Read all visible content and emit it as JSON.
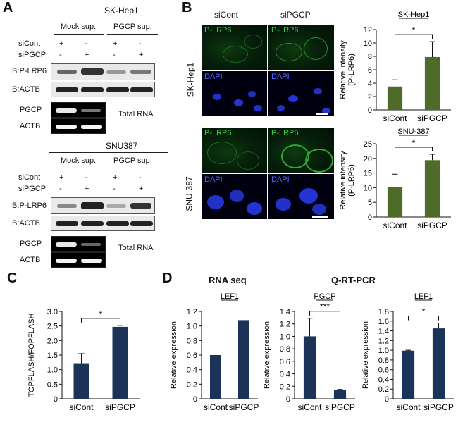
{
  "panel_a": {
    "label": "A",
    "top": {
      "cell_line": "SK-Hep1",
      "group1": "Mock sup.",
      "group2": "PGCP sup.",
      "row1_label": "siCont",
      "row2_label": "siPGCP",
      "row1_signs": [
        "+",
        "-",
        "+",
        "-"
      ],
      "row2_signs": [
        "-",
        "+",
        "-",
        "+"
      ],
      "blot1": "IB:P-LRP6",
      "blot2": "IB:ACTB",
      "gel1": "PGCP",
      "gel2": "ACTB",
      "total_rna": "Total RNA"
    },
    "bottom": {
      "cell_line": "SNU387",
      "group1": "Mock sup.",
      "group2": "PGCP sup.",
      "row1_label": "siCont",
      "row2_label": "siPGCP",
      "row1_signs": [
        "+",
        "-",
        "+",
        "-"
      ],
      "row2_signs": [
        "-",
        "+",
        "-",
        "+"
      ],
      "blot1": "IB:P-LRP6",
      "blot2": "IB:ACTB",
      "gel1": "PGCP",
      "gel2": "ACTB",
      "total_rna": "Total RNA"
    }
  },
  "panel_b": {
    "label": "B",
    "col1": "siCont",
    "col2": "siPGCP",
    "row1_cell": "SK-Hep1",
    "row2_cell": "SNU-387",
    "stain1": "P-LRP6",
    "stain2": "DAPI"
  },
  "panel_c": {
    "label": "C"
  },
  "panel_d": {
    "label": "D",
    "heading1": "RNA seq",
    "heading2": "Q-RT-PCR"
  },
  "colors": {
    "green_bar": "#4e6b2a",
    "navy_bar": "#1b3358"
  },
  "chart_data": [
    {
      "id": "b_skhep1",
      "type": "bar",
      "title": "SK-Hep1",
      "categories": [
        "siCont",
        "siPGCP"
      ],
      "values": [
        3.5,
        7.9
      ],
      "errors": [
        1.0,
        2.3
      ],
      "ylabel": "Relative intensity (P-LRP6)",
      "ylim": [
        0,
        12
      ],
      "yticks": [
        0,
        2,
        4,
        6,
        8,
        10,
        12
      ],
      "significance": "*",
      "color": "#4e6b2a"
    },
    {
      "id": "b_snu387",
      "type": "bar",
      "title": "SNU-387",
      "categories": [
        "siCont",
        "siPGCP"
      ],
      "values": [
        10.1,
        19.4
      ],
      "errors": [
        4.5,
        2.0
      ],
      "ylabel": "Relative intensity (P-LRP6)",
      "ylim": [
        0,
        25
      ],
      "yticks": [
        0,
        5,
        10,
        15,
        20,
        25
      ],
      "significance": "*",
      "color": "#4e6b2a"
    },
    {
      "id": "c_topflash",
      "type": "bar",
      "title": "",
      "categories": [
        "siCont",
        "siPGCP"
      ],
      "values": [
        1.22,
        2.47
      ],
      "errors": [
        0.33,
        0.05
      ],
      "ylabel": "TOPFLASH/FOPFLASH",
      "ylim": [
        0,
        3.0
      ],
      "yticks": [
        "0",
        "0.5",
        "1.0",
        "1.5",
        "2.0",
        "2.5",
        "3.0"
      ],
      "significance": "*",
      "color": "#1b3358"
    },
    {
      "id": "d_lef1_rnaseq",
      "type": "bar",
      "title": "LEF1",
      "categories": [
        "siCont",
        "siPGCP"
      ],
      "values": [
        0.6,
        1.08
      ],
      "errors": [
        0,
        0
      ],
      "ylabel": "Relative expression",
      "ylim": [
        0,
        1.2
      ],
      "yticks": [
        "0",
        "0.2",
        "0.4",
        "0.6",
        "0.8",
        "1.0",
        "1.2"
      ],
      "significance": "",
      "color": "#1b3358"
    },
    {
      "id": "d_pgcp_qpcr",
      "type": "bar",
      "title": "PGCP",
      "categories": [
        "siCont",
        "siPGCP"
      ],
      "values": [
        1.0,
        0.14
      ],
      "errors": [
        0.29,
        0.01
      ],
      "ylabel": "Relative expression",
      "ylim": [
        0,
        1.4
      ],
      "yticks": [
        "0",
        "0.2",
        "0.4",
        "0.6",
        "0.8",
        "1.0",
        "1.2",
        "1.4"
      ],
      "significance": "***",
      "color": "#1b3358"
    },
    {
      "id": "d_lef1_qpcr",
      "type": "bar",
      "title": "LEF1",
      "categories": [
        "siCont",
        "siPGCP"
      ],
      "values": [
        0.99,
        1.45
      ],
      "errors": [
        0.01,
        0.11
      ],
      "ylabel": "Relative expression",
      "ylim": [
        0,
        1.8
      ],
      "yticks": [
        "0",
        "0.2",
        "0.4",
        "0.6",
        "0.8",
        "1.0",
        "1.2",
        "1.4",
        "1.6",
        "1.8"
      ],
      "significance": "*",
      "color": "#1b3358"
    }
  ]
}
